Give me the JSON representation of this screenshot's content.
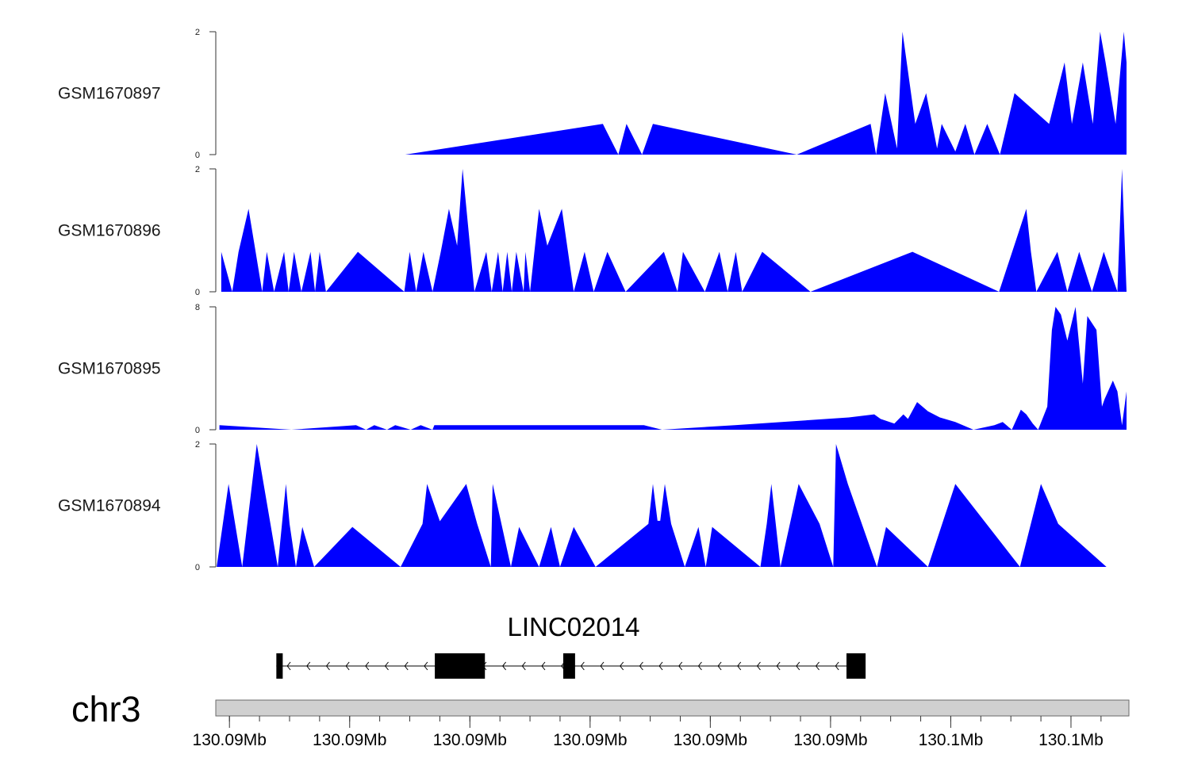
{
  "chart_data": {
    "type": "area",
    "fill_color": "#0000ff",
    "gene": {
      "name": "LINC02014",
      "strand": "-",
      "start": 0.0665,
      "end": 0.7075,
      "exons": [
        [
          0.0665,
          0.0735
        ],
        [
          0.2405,
          0.2955
        ],
        [
          0.3815,
          0.3945
        ],
        [
          0.6925,
          0.7135
        ]
      ]
    },
    "chromosome": "chr3",
    "genome_axis": {
      "tick_labels": [
        "130.09Mb",
        "130.09Mb",
        "130.09Mb",
        "130.09Mb",
        "130.09Mb",
        "130.09Mb",
        "130.1Mb",
        "130.1Mb"
      ],
      "major_ticks": [
        0.015,
        0.147,
        0.279,
        0.411,
        0.543,
        0.675,
        0.807,
        0.939
      ],
      "minor_per_major": 4,
      "range": [
        0,
        1
      ]
    },
    "tracks": [
      {
        "name": "GSM1670897",
        "ylim": [
          0,
          2
        ],
        "tick_labels": [
          "2",
          "0"
        ],
        "x": [
          0.208,
          0.425,
          0.442,
          0.451,
          0.468,
          0.48,
          0.638,
          0.719,
          0.725,
          0.735,
          0.748,
          0.754,
          0.768,
          0.78,
          0.792,
          0.797,
          0.812,
          0.823,
          0.833,
          0.847,
          0.861,
          0.877,
          0.915,
          0.932,
          0.94,
          0.952,
          0.963,
          0.971,
          0.977,
          0.988,
          0.997,
          1.0
        ],
        "y": [
          0,
          0.5,
          0,
          0.5,
          0,
          0.5,
          0,
          0.5,
          0,
          1.0,
          0.1,
          2.0,
          0.5,
          1.0,
          0.1,
          0.5,
          0.05,
          0.5,
          0,
          0.5,
          0,
          1.0,
          0.5,
          1.5,
          0.5,
          1.5,
          0.5,
          2.0,
          1.5,
          0.5,
          2.0,
          1.5
        ]
      },
      {
        "name": "GSM1670896",
        "ylim": [
          0,
          2
        ],
        "tick_labels": [
          "2",
          "0"
        ],
        "x": [
          0.006,
          0.018,
          0.025,
          0.036,
          0.051,
          0.056,
          0.064,
          0.075,
          0.08,
          0.086,
          0.094,
          0.104,
          0.109,
          0.114,
          0.121,
          0.156,
          0.207,
          0.213,
          0.22,
          0.228,
          0.238,
          0.247,
          0.256,
          0.265,
          0.271,
          0.284,
          0.297,
          0.303,
          0.31,
          0.315,
          0.32,
          0.325,
          0.33,
          0.338,
          0.34,
          0.345,
          0.355,
          0.364,
          0.38,
          0.393,
          0.405,
          0.415,
          0.43,
          0.45,
          0.492,
          0.507,
          0.513,
          0.537,
          0.553,
          0.562,
          0.571,
          0.578,
          0.6,
          0.653,
          0.765,
          0.86,
          0.89,
          0.895,
          0.901,
          0.924,
          0.935,
          0.948,
          0.962,
          0.975,
          0.99,
          0.995,
          1.0
        ],
        "y": [
          0.65,
          0,
          0.65,
          1.35,
          0,
          0.65,
          0,
          0.65,
          0,
          0.65,
          0,
          0.65,
          0,
          0.65,
          0,
          0.65,
          0,
          0.65,
          0,
          0.65,
          0,
          0.65,
          1.35,
          0.75,
          2.0,
          0,
          0.65,
          0,
          0.65,
          0,
          0.65,
          0,
          0.65,
          0,
          0.65,
          0,
          1.35,
          0.75,
          1.35,
          0,
          0.65,
          0,
          0.65,
          0,
          0.65,
          0,
          0.65,
          0,
          0.65,
          0,
          0.65,
          0,
          0.65,
          0,
          0.65,
          0,
          1.35,
          0.65,
          0,
          0.65,
          0,
          0.65,
          0,
          0.65,
          0,
          2.0,
          0
        ]
      },
      {
        "name": "GSM1670895",
        "ylim": [
          0,
          8
        ],
        "tick_labels": [
          "8",
          "0"
        ],
        "x": [
          0.004,
          0.083,
          0.154,
          0.165,
          0.174,
          0.188,
          0.197,
          0.214,
          0.225,
          0.238,
          0.24,
          0.47,
          0.49,
          0.57,
          0.695,
          0.723,
          0.73,
          0.745,
          0.755,
          0.76,
          0.77,
          0.782,
          0.795,
          0.812,
          0.832,
          0.855,
          0.864,
          0.874,
          0.884,
          0.89,
          0.897,
          0.903,
          0.913,
          0.918,
          0.922,
          0.928,
          0.935,
          0.944,
          0.952,
          0.957,
          0.967,
          0.973,
          0.976,
          0.985,
          0.99,
          0.995,
          1.0
        ],
        "y": [
          0.3,
          0,
          0.3,
          0,
          0.3,
          0,
          0.3,
          0,
          0.3,
          0,
          0.3,
          0.3,
          0,
          0.3,
          0.8,
          1.0,
          0.7,
          0.4,
          1.0,
          0.7,
          1.8,
          1.2,
          0.8,
          0.5,
          0,
          0.3,
          0.5,
          0,
          1.3,
          1.0,
          0.4,
          0,
          1.5,
          6.5,
          8.0,
          7.5,
          5.8,
          8.0,
          3.0,
          7.4,
          6.5,
          1.5,
          2.0,
          3.2,
          2.5,
          0.3,
          2.5
        ]
      },
      {
        "name": "GSM1670894",
        "ylim": [
          0,
          2
        ],
        "tick_labels": [
          "2",
          "0"
        ],
        "x": [
          0.001,
          0.014,
          0.029,
          0.045,
          0.06,
          0.068,
          0.077,
          0.081,
          0.088,
          0.095,
          0.108,
          0.15,
          0.203,
          0.227,
          0.232,
          0.247,
          0.244,
          0.275,
          0.287,
          0.302,
          0.304,
          0.324,
          0.333,
          0.355,
          0.368,
          0.378,
          0.393,
          0.417,
          0.475,
          0.48,
          0.485,
          0.488,
          0.493,
          0.5,
          0.515,
          0.53,
          0.538,
          0.545,
          0.598,
          0.605,
          0.61,
          0.62,
          0.64,
          0.663,
          0.678,
          0.681,
          0.694,
          0.726,
          0.736,
          0.782,
          0.812,
          0.883,
          0.906,
          0.925,
          0.978,
          0.99
        ],
        "y": [
          0,
          1.35,
          0,
          2.0,
          0.7,
          0,
          1.35,
          0.7,
          0,
          0.65,
          0,
          0.65,
          0,
          0.7,
          1.35,
          0.7,
          0.7,
          1.35,
          0.7,
          0,
          1.35,
          0,
          0.65,
          0,
          0.65,
          0,
          0.65,
          0,
          0.7,
          1.35,
          0.75,
          0.75,
          1.35,
          0.7,
          0,
          0.65,
          0,
          0.65,
          0,
          0.7,
          1.35,
          0,
          1.35,
          0.7,
          0,
          2.0,
          1.35,
          0,
          0.65,
          0,
          1.35,
          0,
          1.35,
          0.7,
          0,
          0
        ]
      }
    ]
  }
}
